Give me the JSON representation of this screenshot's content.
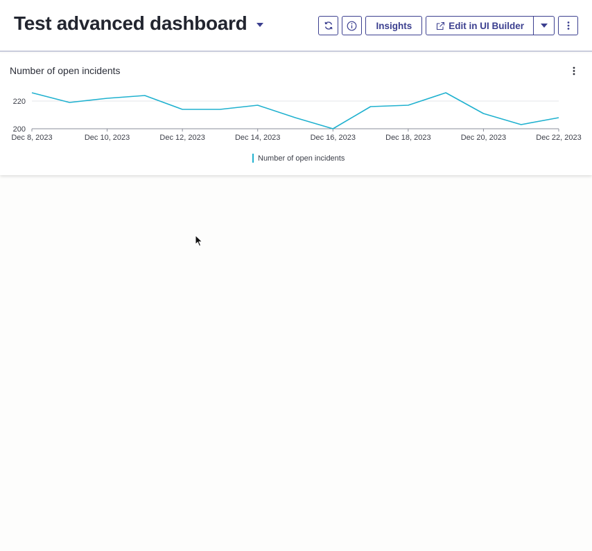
{
  "header": {
    "title": "Test advanced dashboard",
    "buttons": {
      "insights_label": "Insights",
      "edit_label": "Edit in UI Builder"
    }
  },
  "icons": {
    "title_dropdown": "chevron-down-icon",
    "refresh": "refresh-icon",
    "info": "info-icon",
    "edit_external": "external-link-icon",
    "split_dropdown": "chevron-down-icon",
    "more": "more-vertical-icon",
    "card_menu": "more-vertical-icon"
  },
  "colors": {
    "accent": "#3b3f8f",
    "series": "#1fb1cf"
  },
  "card": {
    "title": "Number of open incidents"
  },
  "chart_data": {
    "type": "line",
    "title": "Number of open incidents",
    "xlabel": "",
    "ylabel": "",
    "ylim": [
      200,
      226
    ],
    "yticks": [
      200,
      220
    ],
    "x": [
      "Dec 8, 2023",
      "Dec 9, 2023",
      "Dec 10, 2023",
      "Dec 11, 2023",
      "Dec 12, 2023",
      "Dec 13, 2023",
      "Dec 14, 2023",
      "Dec 15, 2023",
      "Dec 16, 2023",
      "Dec 17, 2023",
      "Dec 18, 2023",
      "Dec 19, 2023",
      "Dec 20, 2023",
      "Dec 21, 2023",
      "Dec 22, 2023"
    ],
    "xtick_labels": [
      "Dec 8, 2023",
      "Dec 10, 2023",
      "Dec 12, 2023",
      "Dec 14, 2023",
      "Dec 16, 2023",
      "Dec 18, 2023",
      "Dec 20, 2023",
      "Dec 22, 2023"
    ],
    "series": [
      {
        "name": "Number of open incidents",
        "values": [
          226,
          219,
          222,
          224,
          214,
          214,
          217,
          208,
          200,
          216,
          217,
          226,
          211,
          203,
          208
        ]
      }
    ],
    "grid": true,
    "legend": "bottom-center"
  }
}
